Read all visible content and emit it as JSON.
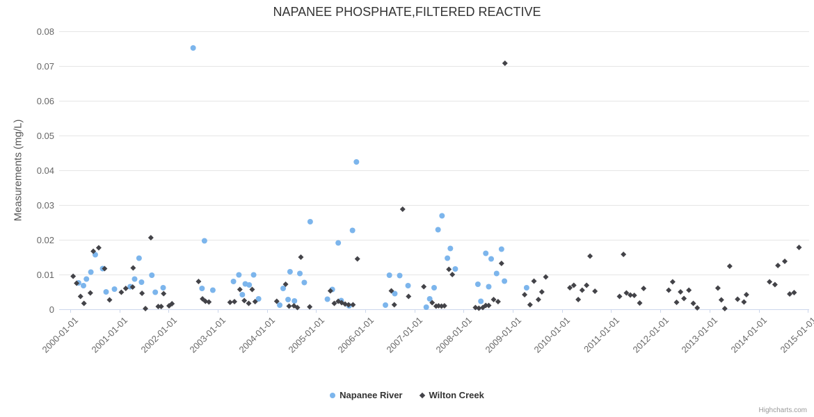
{
  "title": "NAPANEE PHOSPHATE,FILTERED REACTIVE",
  "credit": "Highcharts.com",
  "colors": {
    "napanee_river": "#7cb5ec",
    "wilton_creek": "#434348",
    "grid_line": "#e6e6e6",
    "axis_line": "#ccd6eb",
    "title_text": "#333333",
    "label_text": "#666666",
    "credit_text": "#999999"
  },
  "legend": {
    "items": [
      {
        "label": "Napanee River",
        "marker": "circle",
        "color": "#7cb5ec"
      },
      {
        "label": "Wilton Creek",
        "marker": "diamond",
        "color": "#434348"
      }
    ]
  },
  "chart_data": {
    "type": "scatter",
    "title": "NAPANEE PHOSPHATE,FILTERED REACTIVE",
    "xlabel": "",
    "ylabel": "Measurements (mg/L)",
    "grid": true,
    "legend_position": "bottom-center",
    "xlim": [
      1999.775,
      2015.025
    ],
    "ylim": [
      0,
      0.08
    ],
    "y_ticks": [
      0,
      0.01,
      0.02,
      0.03,
      0.04,
      0.05,
      0.06,
      0.07,
      0.08
    ],
    "y_tick_labels": [
      "0",
      "0.01",
      "0.02",
      "0.03",
      "0.04",
      "0.05",
      "0.06",
      "0.07",
      "0.08"
    ],
    "x_tick_years": [
      2000,
      2001,
      2002,
      2003,
      2004,
      2005,
      2006,
      2007,
      2008,
      2009,
      2010,
      2011,
      2012,
      2013,
      2014,
      2015
    ],
    "x_tick_labels": [
      "2000-01-01",
      "2001-01-01",
      "2002-01-01",
      "2003-01-01",
      "2004-01-01",
      "2005-01-01",
      "2006-01-01",
      "2007-01-01",
      "2008-01-01",
      "2009-01-01",
      "2010-01-01",
      "2011-01-01",
      "2012-01-01",
      "2013-01-01",
      "2014-01-01",
      "2015-01-01"
    ],
    "series": [
      {
        "name": "Napanee River",
        "marker": "circle",
        "color": "#7cb5ec",
        "points": [
          [
            2000.17,
            0.0076
          ],
          [
            2000.27,
            0.0068
          ],
          [
            2000.33,
            0.0087
          ],
          [
            2000.42,
            0.0107
          ],
          [
            2000.51,
            0.0157
          ],
          [
            2000.66,
            0.0117
          ],
          [
            2000.73,
            0.005
          ],
          [
            2000.9,
            0.0058
          ],
          [
            2001.22,
            0.0065
          ],
          [
            2001.31,
            0.0087
          ],
          [
            2001.4,
            0.0147
          ],
          [
            2001.45,
            0.0078
          ],
          [
            2001.66,
            0.0098
          ],
          [
            2001.73,
            0.0049
          ],
          [
            2001.89,
            0.0062
          ],
          [
            2002.5,
            0.0752
          ],
          [
            2002.68,
            0.006
          ],
          [
            2002.73,
            0.0197
          ],
          [
            2002.9,
            0.0055
          ],
          [
            2003.32,
            0.008
          ],
          [
            2003.43,
            0.0099
          ],
          [
            2003.5,
            0.0042
          ],
          [
            2003.56,
            0.0073
          ],
          [
            2003.64,
            0.007
          ],
          [
            2003.73,
            0.0099
          ],
          [
            2003.83,
            0.003
          ],
          [
            2004.26,
            0.0012
          ],
          [
            2004.33,
            0.006
          ],
          [
            2004.43,
            0.0028
          ],
          [
            2004.47,
            0.0108
          ],
          [
            2004.56,
            0.0024
          ],
          [
            2004.67,
            0.0103
          ],
          [
            2004.76,
            0.0077
          ],
          [
            2004.88,
            0.0252
          ],
          [
            2005.23,
            0.0029
          ],
          [
            2005.33,
            0.0057
          ],
          [
            2005.45,
            0.0191
          ],
          [
            2005.51,
            0.0025
          ],
          [
            2005.67,
            0.001
          ],
          [
            2005.74,
            0.0227
          ],
          [
            2005.82,
            0.0424
          ],
          [
            2006.41,
            0.0012
          ],
          [
            2006.49,
            0.0098
          ],
          [
            2006.6,
            0.0045
          ],
          [
            2006.7,
            0.0097
          ],
          [
            2006.87,
            0.0068
          ],
          [
            2007.24,
            0.0006
          ],
          [
            2007.31,
            0.003
          ],
          [
            2007.4,
            0.0062
          ],
          [
            2007.48,
            0.0229
          ],
          [
            2007.56,
            0.0269
          ],
          [
            2007.67,
            0.0147
          ],
          [
            2007.73,
            0.0175
          ],
          [
            2007.83,
            0.0116
          ],
          [
            2008.29,
            0.0072
          ],
          [
            2008.35,
            0.0023
          ],
          [
            2008.45,
            0.0161
          ],
          [
            2008.51,
            0.0065
          ],
          [
            2008.56,
            0.0145
          ],
          [
            2008.67,
            0.0103
          ],
          [
            2008.77,
            0.0173
          ],
          [
            2008.83,
            0.0081
          ],
          [
            2009.28,
            0.0062
          ]
        ]
      },
      {
        "name": "Wilton Creek",
        "marker": "diamond",
        "color": "#434348",
        "points": [
          [
            2000.06,
            0.0095
          ],
          [
            2000.13,
            0.0075
          ],
          [
            2000.21,
            0.0037
          ],
          [
            2000.28,
            0.0017
          ],
          [
            2000.41,
            0.0047
          ],
          [
            2000.47,
            0.0167
          ],
          [
            2000.58,
            0.0177
          ],
          [
            2000.7,
            0.0117
          ],
          [
            2000.8,
            0.0027
          ],
          [
            2001.04,
            0.0049
          ],
          [
            2001.13,
            0.006
          ],
          [
            2001.27,
            0.0064
          ],
          [
            2001.28,
            0.0119
          ],
          [
            2001.46,
            0.0046
          ],
          [
            2001.53,
            0.0002
          ],
          [
            2001.64,
            0.0206
          ],
          [
            2001.79,
            0.0008
          ],
          [
            2001.85,
            0.0008
          ],
          [
            2001.9,
            0.0045
          ],
          [
            2002.01,
            0.001
          ],
          [
            2002.07,
            0.0016
          ],
          [
            2002.61,
            0.008
          ],
          [
            2002.69,
            0.003
          ],
          [
            2002.75,
            0.0023
          ],
          [
            2002.82,
            0.0021
          ],
          [
            2003.25,
            0.002
          ],
          [
            2003.34,
            0.0022
          ],
          [
            2003.45,
            0.0057
          ],
          [
            2003.54,
            0.0025
          ],
          [
            2003.63,
            0.0017
          ],
          [
            2003.7,
            0.0057
          ],
          [
            2003.76,
            0.0022
          ],
          [
            2004.2,
            0.0023
          ],
          [
            2004.38,
            0.0072
          ],
          [
            2004.45,
            0.0009
          ],
          [
            2004.55,
            0.001
          ],
          [
            2004.62,
            0.0005
          ],
          [
            2004.69,
            0.015
          ],
          [
            2004.87,
            0.0007
          ],
          [
            2005.29,
            0.0053
          ],
          [
            2005.37,
            0.0017
          ],
          [
            2005.45,
            0.0023
          ],
          [
            2005.52,
            0.0019
          ],
          [
            2005.59,
            0.0015
          ],
          [
            2005.66,
            0.0013
          ],
          [
            2005.75,
            0.0013
          ],
          [
            2005.84,
            0.0145
          ],
          [
            2006.53,
            0.0053
          ],
          [
            2006.59,
            0.0013
          ],
          [
            2006.76,
            0.0288
          ],
          [
            2006.88,
            0.0037
          ],
          [
            2007.19,
            0.0065
          ],
          [
            2007.36,
            0.0019
          ],
          [
            2007.44,
            0.0009
          ],
          [
            2007.49,
            0.001
          ],
          [
            2007.55,
            0.0009
          ],
          [
            2007.61,
            0.001
          ],
          [
            2007.7,
            0.0115
          ],
          [
            2007.77,
            0.01
          ],
          [
            2008.24,
            0.0005
          ],
          [
            2008.31,
            0.0003
          ],
          [
            2008.39,
            0.0005
          ],
          [
            2008.45,
            0.0011
          ],
          [
            2008.51,
            0.0011
          ],
          [
            2008.61,
            0.0028
          ],
          [
            2008.7,
            0.0022
          ],
          [
            2008.77,
            0.0132
          ],
          [
            2008.84,
            0.0708
          ],
          [
            2009.24,
            0.0042
          ],
          [
            2009.35,
            0.0013
          ],
          [
            2009.43,
            0.0081
          ],
          [
            2009.52,
            0.0028
          ],
          [
            2009.59,
            0.005
          ],
          [
            2009.67,
            0.0093
          ],
          [
            2010.16,
            0.0062
          ],
          [
            2010.24,
            0.0069
          ],
          [
            2010.33,
            0.0028
          ],
          [
            2010.41,
            0.0055
          ],
          [
            2010.5,
            0.0069
          ],
          [
            2010.57,
            0.0153
          ],
          [
            2010.67,
            0.0052
          ],
          [
            2011.17,
            0.0037
          ],
          [
            2011.25,
            0.0158
          ],
          [
            2011.31,
            0.0047
          ],
          [
            2011.39,
            0.0041
          ],
          [
            2011.47,
            0.004
          ],
          [
            2011.58,
            0.0018
          ],
          [
            2011.66,
            0.006
          ],
          [
            2012.17,
            0.0055
          ],
          [
            2012.25,
            0.0079
          ],
          [
            2012.33,
            0.002
          ],
          [
            2012.41,
            0.005
          ],
          [
            2012.48,
            0.0031
          ],
          [
            2012.58,
            0.0055
          ],
          [
            2012.67,
            0.0017
          ],
          [
            2012.75,
            0.0004
          ],
          [
            2013.17,
            0.0061
          ],
          [
            2013.24,
            0.0027
          ],
          [
            2013.31,
            0.0002
          ],
          [
            2013.41,
            0.0124
          ],
          [
            2013.57,
            0.0029
          ],
          [
            2013.7,
            0.0021
          ],
          [
            2013.75,
            0.0042
          ],
          [
            2014.22,
            0.0079
          ],
          [
            2014.33,
            0.0071
          ],
          [
            2014.39,
            0.0126
          ],
          [
            2014.53,
            0.0138
          ],
          [
            2014.63,
            0.0044
          ],
          [
            2014.72,
            0.0048
          ],
          [
            2014.82,
            0.0178
          ]
        ]
      }
    ]
  }
}
